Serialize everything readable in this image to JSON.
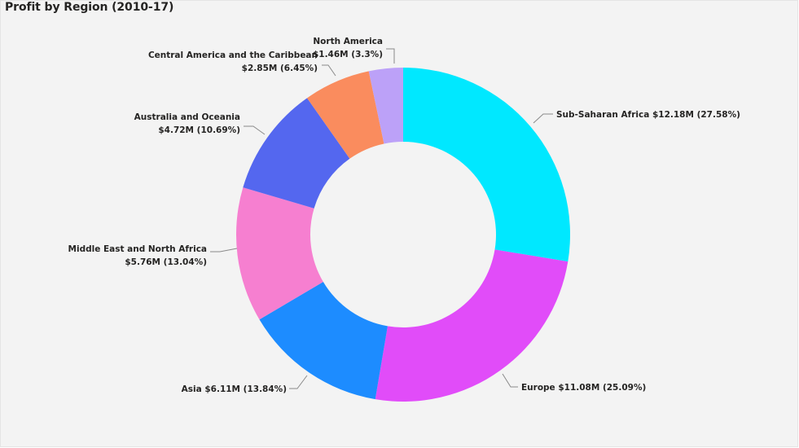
{
  "visual": {
    "title": "Profit by Region (2010-17)"
  },
  "chart_data": {
    "type": "pie",
    "subtype": "donut",
    "title": "Profit by Region (2010-17)",
    "series": [
      {
        "name": "",
        "slices": [
          {
            "label": "Sub-Saharan Africa",
            "value": 12.18,
            "display_value": "$12.18M",
            "percent_label": "(27.58%)",
            "color": "#00e8ff"
          },
          {
            "label": "Europe",
            "value": 11.08,
            "display_value": "$11.08M",
            "percent_label": "(25.09%)",
            "color": "#e14cf9"
          },
          {
            "label": "Asia",
            "value": 6.11,
            "display_value": "$6.11M",
            "percent_label": "(13.84%)",
            "color": "#1d8cff"
          },
          {
            "label": "Middle East and North Africa",
            "value": 5.76,
            "display_value": "$5.76M",
            "percent_label": "(13.04%)",
            "color": "#f67fd0"
          },
          {
            "label": "Australia and Oceania",
            "value": 4.72,
            "display_value": "$4.72M",
            "percent_label": "(10.69%)",
            "color": "#5467ef"
          },
          {
            "label": "Central America and the Caribbean",
            "value": 2.85,
            "display_value": "$2.85M",
            "percent_label": "(6.45%)",
            "color": "#fa8c5e"
          },
          {
            "label": "North America",
            "value": 1.46,
            "display_value": "$1.46M",
            "percent_label": "(3.3%)",
            "color": "#bca1f8"
          }
        ]
      }
    ],
    "legend": "none"
  }
}
